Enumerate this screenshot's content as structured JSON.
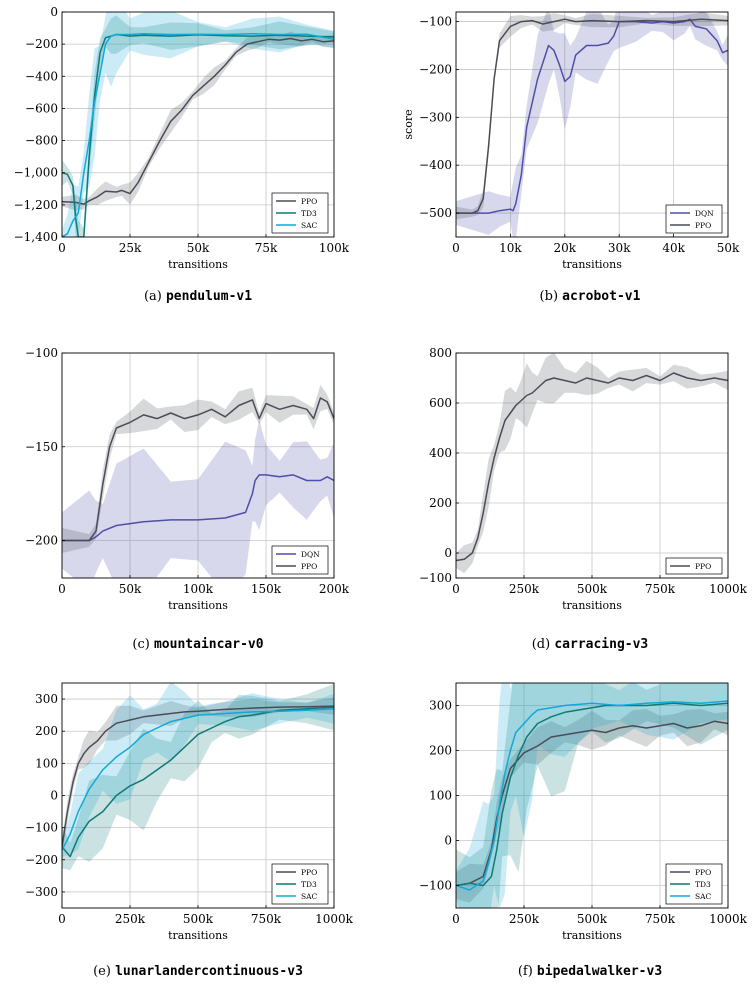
{
  "colors": {
    "PPO": "#4a4d57",
    "TD3": "#0f7a76",
    "SAC": "#10a9d8",
    "DQN": "#4f4fa8"
  },
  "chart_data": [
    {
      "id": "a",
      "type": "line",
      "caption_label": "(a)",
      "caption_env": "pendulum-v1",
      "xlabel": "transitions",
      "ylabel": "",
      "xlim": [
        0,
        100000
      ],
      "ylim": [
        -1400,
        0
      ],
      "xticks": [
        0,
        25000,
        50000,
        75000,
        100000
      ],
      "xticklabels": [
        "0",
        "25k",
        "50k",
        "75k",
        "100k"
      ],
      "yticks": [
        0,
        -200,
        -400,
        -600,
        -800,
        -1000,
        -1200,
        -1400
      ],
      "yticklabels": [
        "0",
        "−200",
        "−400",
        "−600",
        "−800",
        "−1,000",
        "−1,200",
        "−1,400"
      ],
      "grid": true,
      "legend_position": "bottom-right",
      "series": [
        {
          "name": "PPO",
          "shade": [
            30,
            50
          ],
          "x": [
            0,
            5000,
            8000,
            10000,
            13000,
            16000,
            20000,
            22000,
            25000,
            28000,
            32000,
            36000,
            40000,
            44000,
            48000,
            52000,
            56000,
            60000,
            64000,
            68000,
            72000,
            76000,
            80000,
            84000,
            88000,
            92000,
            96000,
            100000
          ],
          "y": [
            -1180,
            -1185,
            -1195,
            -1175,
            -1150,
            -1115,
            -1120,
            -1110,
            -1130,
            -1060,
            -930,
            -800,
            -680,
            -610,
            -520,
            -460,
            -400,
            -330,
            -250,
            -200,
            -185,
            -170,
            -175,
            -165,
            -180,
            -170,
            -185,
            -180
          ]
        },
        {
          "name": "TD3",
          "shade": [
            60,
            100
          ],
          "x": [
            0,
            2000,
            4000,
            5000,
            6000,
            8000,
            10000,
            12000,
            14000,
            16000,
            18000,
            20000,
            25000,
            30000,
            40000,
            50000,
            60000,
            70000,
            80000,
            90000,
            100000
          ],
          "y": [
            -1000,
            -1010,
            -1080,
            -1280,
            -1400,
            -1400,
            -900,
            -520,
            -250,
            -160,
            -150,
            -140,
            -150,
            -145,
            -150,
            -142,
            -148,
            -150,
            -145,
            -150,
            -155
          ]
        },
        {
          "name": "SAC",
          "shade": [
            80,
            250
          ],
          "x": [
            0,
            2000,
            4000,
            6000,
            8000,
            10000,
            12000,
            14000,
            16000,
            18000,
            20000,
            25000,
            30000,
            40000,
            50000,
            60000,
            70000,
            80000,
            90000,
            100000
          ],
          "y": [
            -1400,
            -1380,
            -1300,
            -1250,
            -1000,
            -800,
            -560,
            -380,
            -200,
            -150,
            -140,
            -140,
            -135,
            -140,
            -138,
            -140,
            -135,
            -140,
            -138,
            -170
          ]
        }
      ]
    },
    {
      "id": "b",
      "type": "line",
      "caption_label": "(b)",
      "caption_env": "acrobot-v1",
      "xlabel": "transitions",
      "ylabel": "score",
      "xlim": [
        0,
        50000
      ],
      "ylim": [
        -550,
        -80
      ],
      "xticks": [
        0,
        10000,
        20000,
        30000,
        40000,
        50000
      ],
      "xticklabels": [
        "0",
        "10k",
        "20k",
        "30k",
        "40k",
        "50k"
      ],
      "yticks": [
        -100,
        -200,
        -300,
        -400,
        -500
      ],
      "yticklabels": [
        "−100",
        "−200",
        "−300",
        "−400",
        "−500"
      ],
      "grid": true,
      "legend_position": "bottom-right",
      "series": [
        {
          "name": "DQN",
          "shade": [
            25,
            70
          ],
          "x": [
            0,
            6000,
            8000,
            10000,
            10500,
            11000,
            12000,
            13000,
            15000,
            17000,
            18000,
            19000,
            20000,
            21000,
            22000,
            24000,
            26000,
            28000,
            29000,
            30000,
            33000,
            36000,
            38000,
            40000,
            42000,
            43000,
            44000,
            46000,
            48000,
            49000,
            50000
          ],
          "y": [
            -500,
            -500,
            -495,
            -492,
            -495,
            -480,
            -420,
            -320,
            -220,
            -150,
            -160,
            -190,
            -225,
            -215,
            -170,
            -150,
            -150,
            -145,
            -130,
            -100,
            -100,
            -103,
            -100,
            -103,
            -100,
            -95,
            -110,
            -115,
            -140,
            -165,
            -160
          ]
        },
        {
          "name": "PPO",
          "shade": [
            10,
            15
          ],
          "x": [
            0,
            3000,
            4000,
            5000,
            6000,
            7000,
            8000,
            10000,
            12000,
            14000,
            16000,
            18000,
            20000,
            22000,
            25000,
            30000,
            35000,
            40000,
            45000,
            50000
          ],
          "y": [
            -500,
            -500,
            -495,
            -470,
            -360,
            -220,
            -140,
            -110,
            -100,
            -98,
            -105,
            -100,
            -95,
            -100,
            -98,
            -100,
            -98,
            -100,
            -95,
            -98
          ]
        }
      ]
    },
    {
      "id": "c",
      "type": "line",
      "caption_label": "(c)",
      "caption_env": "mountaincar-v0",
      "xlabel": "transitions",
      "ylabel": "",
      "xlim": [
        0,
        200000
      ],
      "ylim": [
        -220,
        -100
      ],
      "xticks": [
        0,
        50000,
        100000,
        150000,
        200000
      ],
      "xticklabels": [
        "0",
        "50k",
        "100k",
        "150k",
        "200k"
      ],
      "yticks": [
        -100,
        -150,
        -200
      ],
      "yticklabels": [
        "−100",
        "−150",
        "−200"
      ],
      "grid": true,
      "legend_position": "bottom-right",
      "series": [
        {
          "name": "DQN",
          "shade": [
            15,
            30
          ],
          "x": [
            0,
            20000,
            25000,
            30000,
            40000,
            60000,
            80000,
            100000,
            120000,
            135000,
            140000,
            142000,
            145000,
            150000,
            160000,
            170000,
            180000,
            190000,
            195000,
            200000
          ],
          "y": [
            -200,
            -200,
            -198,
            -195,
            -192,
            -190,
            -189,
            -189,
            -188,
            -185,
            -175,
            -168,
            -165,
            -165,
            -166,
            -165,
            -168,
            -168,
            -166,
            -168
          ]
        },
        {
          "name": "PPO",
          "shade": [
            5,
            6
          ],
          "x": [
            0,
            20000,
            25000,
            30000,
            35000,
            40000,
            50000,
            60000,
            70000,
            80000,
            90000,
            100000,
            110000,
            120000,
            130000,
            140000,
            145000,
            150000,
            160000,
            170000,
            180000,
            185000,
            190000,
            195000,
            200000
          ],
          "y": [
            -200,
            -200,
            -195,
            -170,
            -150,
            -140,
            -137,
            -133,
            -135,
            -132,
            -135,
            -133,
            -130,
            -134,
            -128,
            -125,
            -135,
            -127,
            -130,
            -128,
            -130,
            -135,
            -124,
            -126,
            -135
          ]
        }
      ]
    },
    {
      "id": "d",
      "type": "line",
      "caption_label": "(d)",
      "caption_env": "carracing-v3",
      "xlabel": "transitions",
      "ylabel": "",
      "xlim": [
        0,
        1000000
      ],
      "ylim": [
        -100,
        800
      ],
      "xticks": [
        0,
        250000,
        500000,
        750000,
        1000000
      ],
      "xticklabels": [
        "0",
        "250k",
        "500k",
        "750k",
        "1000k"
      ],
      "yticks": [
        800,
        600,
        400,
        200,
        0,
        -100
      ],
      "yticklabels": [
        "800",
        "600",
        "400",
        "200",
        "0",
        "−100"
      ],
      "grid": true,
      "legend_position": "bottom-right",
      "series": [
        {
          "name": "PPO",
          "shade": [
            30,
            90
          ],
          "x": [
            0,
            30000,
            60000,
            80000,
            100000,
            120000,
            140000,
            160000,
            180000,
            200000,
            220000,
            240000,
            260000,
            280000,
            300000,
            330000,
            360000,
            400000,
            440000,
            480000,
            520000,
            560000,
            600000,
            650000,
            700000,
            750000,
            800000,
            850000,
            900000,
            950000,
            1000000
          ],
          "y": [
            -30,
            -25,
            0,
            60,
            160,
            280,
            380,
            460,
            530,
            560,
            590,
            610,
            630,
            640,
            660,
            690,
            700,
            690,
            680,
            700,
            690,
            680,
            700,
            690,
            710,
            690,
            720,
            700,
            690,
            700,
            690
          ]
        }
      ]
    },
    {
      "id": "e",
      "type": "line",
      "caption_label": "(e)",
      "caption_env": "lunarlandercontinuous-v3",
      "xlabel": "transitions",
      "ylabel": "",
      "xlim": [
        0,
        1000000
      ],
      "ylim": [
        -350,
        350
      ],
      "xticks": [
        0,
        250000,
        500000,
        750000,
        1000000
      ],
      "xticklabels": [
        "0",
        "250k",
        "500k",
        "750k",
        "1000k"
      ],
      "yticks": [
        300,
        200,
        100,
        0,
        -100,
        -200,
        -300
      ],
      "yticklabels": [
        "300",
        "200",
        "100",
        "0",
        "−100",
        "−200",
        "−300"
      ],
      "grid": true,
      "legend_position": "bottom-right",
      "series": [
        {
          "name": "PPO",
          "shade": [
            20,
            40
          ],
          "x": [
            0,
            20000,
            40000,
            60000,
            80000,
            100000,
            130000,
            160000,
            200000,
            250000,
            300000,
            350000,
            400000,
            450000,
            500000,
            600000,
            700000,
            800000,
            900000,
            1000000
          ],
          "y": [
            -160,
            -50,
            40,
            100,
            130,
            150,
            170,
            200,
            225,
            235,
            245,
            250,
            255,
            260,
            262,
            268,
            272,
            275,
            276,
            278
          ]
        },
        {
          "name": "TD3",
          "shade": [
            50,
            110
          ],
          "x": [
            0,
            30000,
            60000,
            100000,
            150000,
            200000,
            250000,
            300000,
            350000,
            400000,
            450000,
            500000,
            550000,
            600000,
            650000,
            700000,
            800000,
            900000,
            1000000
          ],
          "y": [
            -160,
            -190,
            -130,
            -80,
            -50,
            0,
            30,
            50,
            80,
            110,
            150,
            190,
            210,
            230,
            245,
            250,
            265,
            270,
            275
          ]
        },
        {
          "name": "SAC",
          "shade": [
            40,
            120
          ],
          "x": [
            0,
            30000,
            60000,
            100000,
            150000,
            200000,
            250000,
            300000,
            350000,
            400000,
            450000,
            500000,
            600000,
            700000,
            800000,
            900000,
            1000000
          ],
          "y": [
            -170,
            -120,
            -50,
            20,
            80,
            120,
            150,
            190,
            210,
            230,
            240,
            250,
            255,
            260,
            262,
            265,
            270
          ]
        }
      ]
    },
    {
      "id": "f",
      "type": "line",
      "caption_label": "(f)",
      "caption_env": "bipedalwalker-v3",
      "xlabel": "transitions",
      "ylabel": "",
      "xlim": [
        0,
        1000000
      ],
      "ylim": [
        -150,
        350
      ],
      "xticks": [
        0,
        250000,
        500000,
        750000,
        1000000
      ],
      "xticklabels": [
        "0",
        "250k",
        "500k",
        "750k",
        "1000k"
      ],
      "yticks": [
        300,
        200,
        100,
        0,
        -100
      ],
      "yticklabels": [
        "300",
        "200",
        "100",
        "0",
        "−100"
      ],
      "grid": true,
      "legend_position": "bottom-right",
      "series": [
        {
          "name": "PPO",
          "shade": [
            30,
            30
          ],
          "x": [
            0,
            50000,
            100000,
            130000,
            150000,
            170000,
            200000,
            250000,
            300000,
            350000,
            400000,
            450000,
            500000,
            550000,
            600000,
            650000,
            700000,
            750000,
            800000,
            850000,
            900000,
            950000,
            1000000
          ],
          "y": [
            -100,
            -95,
            -80,
            -20,
            50,
            100,
            160,
            195,
            210,
            230,
            235,
            240,
            245,
            240,
            250,
            255,
            250,
            255,
            260,
            250,
            255,
            265,
            260
          ]
        },
        {
          "name": "TD3",
          "shade": [
            60,
            180
          ],
          "x": [
            0,
            50000,
            100000,
            130000,
            150000,
            170000,
            200000,
            230000,
            260000,
            300000,
            350000,
            400000,
            450000,
            500000,
            550000,
            600000,
            700000,
            800000,
            900000,
            1000000
          ],
          "y": [
            -100,
            -95,
            -100,
            -80,
            -20,
            60,
            140,
            190,
            230,
            260,
            275,
            285,
            290,
            295,
            300,
            300,
            300,
            305,
            300,
            305
          ]
        },
        {
          "name": "SAC",
          "shade": [
            60,
            200
          ],
          "x": [
            0,
            50000,
            100000,
            120000,
            140000,
            160000,
            180000,
            200000,
            220000,
            250000,
            280000,
            300000,
            350000,
            400000,
            500000,
            600000,
            700000,
            800000,
            900000,
            1000000
          ],
          "y": [
            -100,
            -110,
            -90,
            -50,
            0,
            80,
            150,
            200,
            240,
            260,
            280,
            290,
            295,
            300,
            305,
            300,
            305,
            308,
            305,
            310
          ]
        }
      ]
    }
  ]
}
